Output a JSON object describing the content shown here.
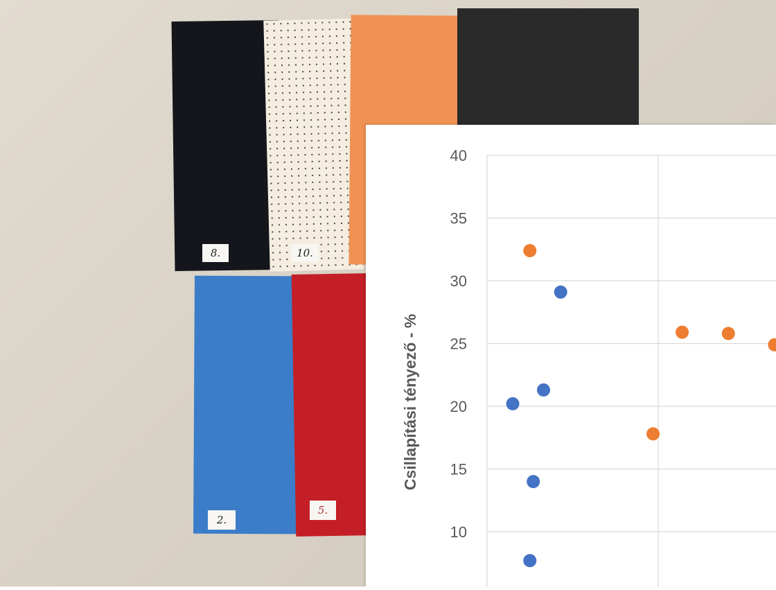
{
  "photo": {
    "sheet_labels": [
      "8.",
      "10.",
      "2.",
      "5."
    ],
    "sheet_colors": {
      "black_sheet": "#14161c",
      "cream_sheet": "#f4ede0",
      "orange_sheet": "#ef9254",
      "dark_grey_sheet": "#2a2a2b",
      "blue_sheet": "#3b7dc8",
      "red_sheet": "#c41f26"
    }
  },
  "chart_data": {
    "type": "scatter",
    "title": "",
    "xlabel": "",
    "ylabel": "Csillapítási tényező  -  %",
    "ylim": [
      7,
      41.5
    ],
    "yticks": [
      10,
      15,
      20,
      25,
      30,
      35,
      40
    ],
    "xlim": [
      0,
      3
    ],
    "grid": true,
    "series": [
      {
        "color": "#4472c4",
        "points": [
          {
            "x": 0.43,
            "y": 29.1
          },
          {
            "x": 0.33,
            "y": 21.3
          },
          {
            "x": 0.15,
            "y": 20.2
          },
          {
            "x": 0.27,
            "y": 14.0
          },
          {
            "x": 0.25,
            "y": 7.7
          }
        ]
      },
      {
        "color": "#ed7d31",
        "points": [
          {
            "x": 0.25,
            "y": 32.4
          },
          {
            "x": 1.14,
            "y": 25.9
          },
          {
            "x": 1.41,
            "y": 25.8
          },
          {
            "x": 1.68,
            "y": 24.9
          },
          {
            "x": 0.97,
            "y": 17.8
          }
        ]
      }
    ]
  }
}
